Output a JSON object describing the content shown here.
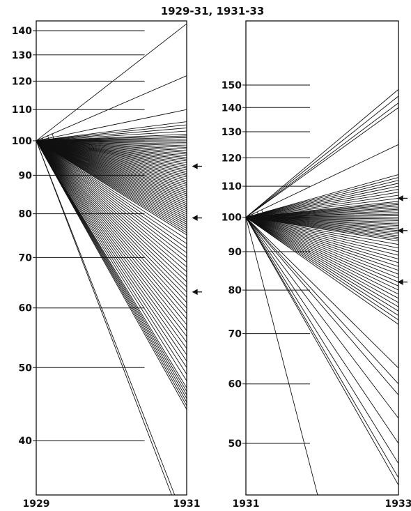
{
  "figure": {
    "title": "1929-31, 1931-33"
  },
  "chart_data": [
    {
      "type": "line",
      "scale": "log",
      "x_start_label": "1929",
      "x_end_label": "1931",
      "ylim": [
        34,
        145
      ],
      "y_ticks": [
        {
          "value": 140,
          "label": "140"
        },
        {
          "value": 130,
          "label": "130"
        },
        {
          "value": 120,
          "label": "120"
        },
        {
          "value": 110,
          "label": "110"
        },
        {
          "value": 100,
          "label": "100"
        },
        {
          "value": 90,
          "label": "90"
        },
        {
          "value": 80,
          "label": "80"
        },
        {
          "value": 70,
          "label": "70"
        },
        {
          "value": 60,
          "label": "60"
        },
        {
          "value": 50,
          "label": "50"
        },
        {
          "value": 40,
          "label": "40"
        }
      ],
      "start_value": 100,
      "end_values": [
        143,
        122,
        110,
        106,
        105,
        104,
        103,
        102,
        101.5,
        101,
        100.5,
        100,
        99.5,
        99,
        98.5,
        98,
        97.5,
        97,
        96.5,
        96,
        95.5,
        95,
        94.5,
        94,
        93.5,
        93,
        92.5,
        92,
        91.5,
        91,
        90.5,
        90,
        89.5,
        89,
        88.5,
        88,
        87.5,
        87,
        86.5,
        86,
        85.5,
        85,
        84.5,
        84,
        83.5,
        83,
        82.5,
        82,
        81.5,
        81,
        80.5,
        80,
        79.5,
        79,
        78.5,
        78,
        77.5,
        77,
        76.5,
        76,
        75.5,
        75,
        74,
        73,
        72,
        71,
        70,
        69,
        68,
        67,
        66,
        65,
        64,
        63,
        62,
        61,
        60,
        59,
        58,
        57,
        56,
        55,
        54,
        53,
        52,
        51,
        50,
        49,
        48,
        47,
        46.5,
        46,
        45.5,
        45,
        44.5,
        44
      ],
      "end_values_beyond_axis": [
        {
          "at_value": 34,
          "x_fraction": 0.92
        },
        {
          "at_value": 34,
          "x_fraction": 0.9
        }
      ],
      "arrows_at": [
        92.5,
        79,
        63
      ]
    },
    {
      "type": "line",
      "scale": "log",
      "x_start_label": "1931",
      "x_end_label": "1933",
      "ylim": [
        42,
        175
      ],
      "y_ticks": [
        {
          "value": 150,
          "label": "150"
        },
        {
          "value": 140,
          "label": "140"
        },
        {
          "value": 130,
          "label": "130"
        },
        {
          "value": 120,
          "label": "120"
        },
        {
          "value": 110,
          "label": "110"
        },
        {
          "value": 100,
          "label": "100"
        },
        {
          "value": 90,
          "label": "90"
        },
        {
          "value": 80,
          "label": "80"
        },
        {
          "value": 70,
          "label": "70"
        },
        {
          "value": 60,
          "label": "60"
        },
        {
          "value": 50,
          "label": "50"
        }
      ],
      "start_value": 100,
      "end_values": [
        148,
        145,
        142,
        140,
        125,
        114,
        113,
        112,
        111,
        110,
        109,
        108,
        107,
        106,
        105,
        104.5,
        104,
        103.5,
        103,
        102.5,
        102,
        101.5,
        101,
        100.5,
        100,
        99.5,
        99,
        98.5,
        98,
        97.5,
        97,
        96.5,
        96,
        95.5,
        95,
        94.5,
        94,
        93.5,
        93,
        92,
        91,
        90,
        89,
        88,
        87,
        86,
        85,
        84,
        83,
        82,
        81,
        80,
        79,
        78,
        77,
        76,
        75,
        74,
        73,
        72,
        63,
        60,
        58,
        54,
        50,
        47,
        45,
        44
      ],
      "end_values_beyond_axis": [
        {
          "at_value": 42,
          "x_fraction": 0.47
        }
      ],
      "arrows_at": [
        106,
        96,
        82
      ]
    }
  ]
}
